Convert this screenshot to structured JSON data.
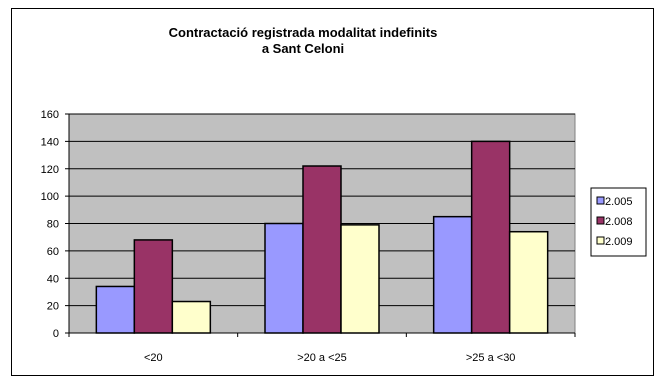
{
  "chart_data": {
    "type": "bar",
    "title_lines": [
      "Contractació registrada modalitat indefinits",
      "a Sant Celoni"
    ],
    "categories": [
      "<20",
      ">20 a <25",
      ">25 a <30"
    ],
    "series": [
      {
        "name": "2.005",
        "values": [
          34,
          80,
          85
        ],
        "color": "#9999FF"
      },
      {
        "name": "2.008",
        "values": [
          68,
          122,
          140
        ],
        "color": "#993366"
      },
      {
        "name": "2.009",
        "values": [
          23,
          79,
          74
        ],
        "color": "#FFFFCC"
      }
    ],
    "ylim": [
      0,
      160
    ],
    "yticks": [
      0,
      20,
      40,
      60,
      80,
      100,
      120,
      140,
      160
    ],
    "grid": true,
    "plot_background": "#C0C0C0",
    "legend_position": "right"
  }
}
